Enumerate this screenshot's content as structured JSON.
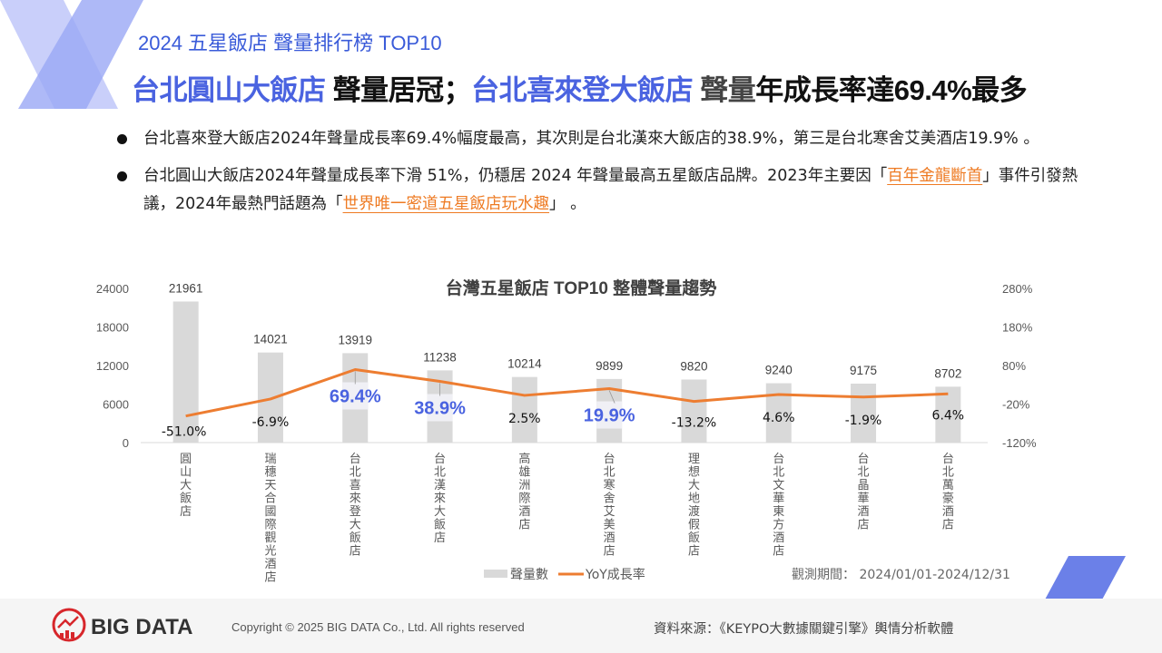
{
  "header": {
    "subtitle": "2024 五星飯店 聲量排行榜 TOP10",
    "headline": {
      "part1": "台北圓山大飯店",
      "part2": " 聲量居冠；",
      "part3": "台北喜來登大飯店",
      "part4": " 聲量",
      "part5": "年成長率達69.4%最多"
    }
  },
  "bullets": [
    {
      "text": "台北喜來登大飯店2024年聲量成長率69.4%幅度最高，其次則是台北漢來大飯店的38.9%，第三是台北寒舍艾美酒店19.9% 。"
    },
    {
      "text_before": "台北圓山大飯店2024年聲量成長率下滑 51%，仍穩居 2024 年聲量最高五星飯店品牌。2023年主要因「",
      "link1": "百年金龍斷首",
      "text_middle": "」事件引發熱議，2024年最熱門話題為「",
      "link2": "世界唯一密道五星飯店玩水趣",
      "text_after": "」 。"
    }
  ],
  "chart_data": {
    "type": "bar+line",
    "title": "台灣五星飯店 TOP10 整體聲量趨勢",
    "categories": [
      "圓山大飯店",
      "瑞穗天合國際觀光酒店",
      "台北喜來登大飯店",
      "台北漢來大飯店",
      "高雄洲際酒店",
      "台北寒舍艾美酒店",
      "理想大地渡假飯店",
      "台北文華東方酒店",
      "台北晶華酒店",
      "台北萬豪酒店"
    ],
    "series": [
      {
        "name": "聲量數",
        "type": "bar",
        "axis": "left",
        "color": "#d9d9d9",
        "values": [
          21961,
          14021,
          13919,
          11238,
          10214,
          9899,
          9820,
          9240,
          9175,
          8702
        ],
        "labels": [
          "21961",
          "14021",
          "13919",
          "11238",
          "10214",
          "9899",
          "9820",
          "9240",
          "9175",
          "8702"
        ]
      },
      {
        "name": "YoY成長率",
        "type": "line",
        "axis": "right",
        "color": "#ed7d31",
        "values": [
          -51.0,
          -6.9,
          69.4,
          38.9,
          2.5,
          19.9,
          -13.2,
          4.6,
          -1.9,
          6.4
        ],
        "labels": [
          "-51.0%",
          "-6.9%",
          "69.4%",
          "38.9%",
          "2.5%",
          "19.9%",
          "-13.2%",
          "4.6%",
          "-1.9%",
          "6.4%"
        ],
        "highlighted": [
          false,
          false,
          true,
          true,
          false,
          true,
          false,
          false,
          false,
          false
        ]
      }
    ],
    "y_left": {
      "range": [
        0,
        24000
      ],
      "ticks": [
        "0",
        "6000",
        "12000",
        "18000",
        "24000"
      ]
    },
    "y_right": {
      "range": [
        -120,
        280
      ],
      "ticks": [
        "-120%",
        "-20%",
        "80%",
        "180%",
        "280%"
      ]
    },
    "legend": "bottom",
    "grid": false,
    "highlight_color": "#4a63e0",
    "note": "觀測期間： 2024/01/01-2024/12/31"
  },
  "footer": {
    "logo_text": "BIG DATA",
    "copyright": "Copyright © 2025 BIG DATA Co., Ltd. All rights reserved",
    "source": "資料來源：《KEYPO大數據關鍵引擎》輿情分析軟體"
  },
  "colors": {
    "accent_blue": "#4a63e0",
    "orange": "#ed7d31",
    "deco_light": "#c3cafa",
    "deco_mid": "#9aa8f5",
    "deco_para": "#6b80e8"
  }
}
